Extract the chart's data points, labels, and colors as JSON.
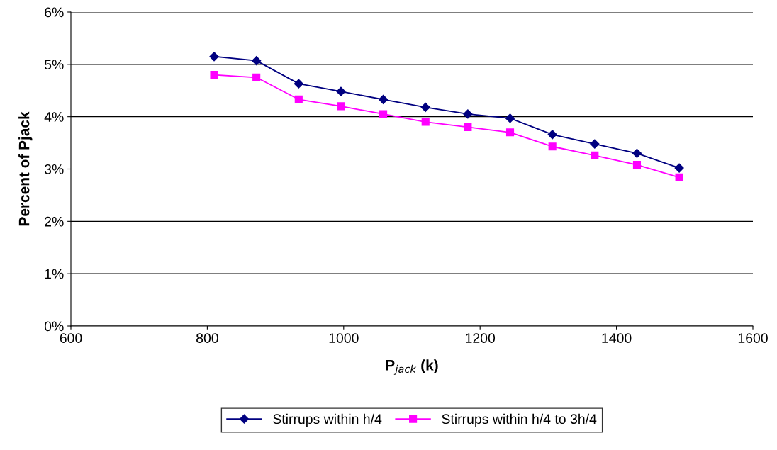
{
  "chart_data": {
    "type": "line",
    "xlabel": "P$_{jack}$ (k)",
    "ylabel": "Percent of Pjack",
    "xlim": [
      600,
      1600
    ],
    "xticks": [
      600,
      800,
      1000,
      1200,
      1400,
      1600
    ],
    "ylim": [
      0,
      6
    ],
    "yticks": [
      {
        "value": 0,
        "label": "0%"
      },
      {
        "value": 1,
        "label": "1%"
      },
      {
        "value": 2,
        "label": "2%"
      },
      {
        "value": 3,
        "label": "3%"
      },
      {
        "value": 4,
        "label": "4%"
      },
      {
        "value": 5,
        "label": "5%"
      },
      {
        "value": 6,
        "label": "6%"
      }
    ],
    "grid": "y",
    "legend": "bottom",
    "x": [
      810,
      872,
      934,
      996,
      1058,
      1120,
      1182,
      1244,
      1306,
      1368,
      1430,
      1492
    ],
    "series": [
      {
        "name": "Stirrups within h/4",
        "color": "#000080",
        "marker": "diamond",
        "values": [
          5.15,
          5.07,
          4.63,
          4.48,
          4.33,
          4.18,
          4.05,
          3.97,
          3.66,
          3.48,
          3.3,
          3.02
        ]
      },
      {
        "name": "Stirrups within h/4 to 3h/4",
        "color": "#ff00ff",
        "marker": "square",
        "values": [
          4.8,
          4.75,
          4.33,
          4.2,
          4.05,
          3.9,
          3.8,
          3.7,
          3.43,
          3.26,
          3.08,
          2.84
        ]
      }
    ]
  }
}
